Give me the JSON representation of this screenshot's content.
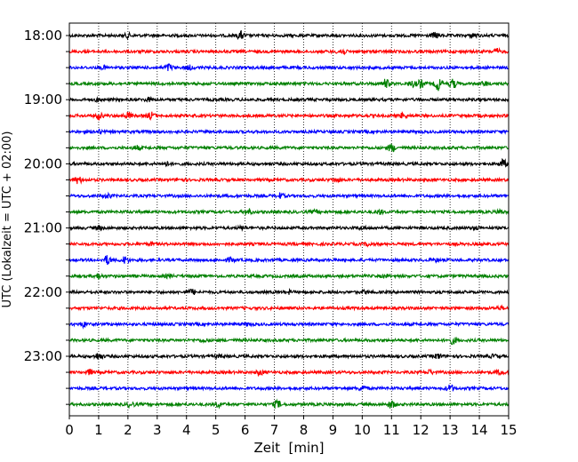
{
  "chart_data": {
    "type": "line",
    "title": "",
    "xlabel": "Zeit  [min]",
    "ylabel": "UTC (Lokalzeit = UTC + 02:00)",
    "xlim": [
      0,
      15
    ],
    "x_ticks": [
      0,
      1,
      2,
      3,
      4,
      5,
      6,
      7,
      8,
      9,
      10,
      11,
      12,
      13,
      14,
      15
    ],
    "x_tick_labels": [
      "0",
      "1",
      "2",
      "3",
      "4",
      "5",
      "6",
      "7",
      "8",
      "9",
      "10",
      "11",
      "12",
      "13",
      "14",
      "15"
    ],
    "y_ticks": [
      "18:00",
      "19:00",
      "20:00",
      "21:00",
      "22:00",
      "23:00"
    ],
    "grid": "vertical dotted lines at each minute",
    "line_minutes": 15,
    "color_cycle": [
      "#000000",
      "#ff0000",
      "#0000ff",
      "#008000"
    ],
    "series": [
      {
        "start": "18:00",
        "color": "#000000",
        "events": [
          [
            2.0,
            4
          ],
          [
            5.85,
            8
          ],
          [
            12.5,
            6
          ],
          [
            13.8,
            5
          ]
        ]
      },
      {
        "start": "18:15",
        "color": "#ff0000",
        "events": [
          [
            9.3,
            7
          ],
          [
            14.6,
            5
          ]
        ]
      },
      {
        "start": "18:30",
        "color": "#0000ff",
        "events": [
          [
            1.2,
            3
          ],
          [
            3.4,
            7
          ],
          [
            4.1,
            4
          ]
        ]
      },
      {
        "start": "18:45",
        "color": "#008000",
        "events": [
          [
            10.8,
            9
          ],
          [
            11.7,
            6
          ],
          [
            12.0,
            8
          ],
          [
            12.6,
            14
          ],
          [
            13.1,
            9
          ],
          [
            14.2,
            4
          ]
        ]
      },
      {
        "start": "19:00",
        "color": "#000000",
        "events": [
          [
            1.0,
            3
          ],
          [
            2.7,
            3
          ]
        ]
      },
      {
        "start": "19:15",
        "color": "#ff0000",
        "events": [
          [
            1.0,
            7
          ],
          [
            2.0,
            6
          ],
          [
            2.8,
            7
          ],
          [
            11.4,
            5
          ]
        ]
      },
      {
        "start": "19:30",
        "color": "#0000ff",
        "events": [
          [
            1.0,
            3
          ]
        ]
      },
      {
        "start": "19:45",
        "color": "#008000",
        "events": [
          [
            2.3,
            4
          ],
          [
            11.0,
            8
          ]
        ]
      },
      {
        "start": "20:00",
        "color": "#000000",
        "events": [
          [
            3.3,
            4
          ],
          [
            14.8,
            9
          ]
        ]
      },
      {
        "start": "20:15",
        "color": "#ff0000",
        "events": [
          [
            0.3,
            7
          ],
          [
            3.8,
            3
          ],
          [
            9.1,
            4
          ]
        ]
      },
      {
        "start": "20:30",
        "color": "#0000ff",
        "events": [
          [
            1.3,
            5
          ],
          [
            7.2,
            5
          ]
        ]
      },
      {
        "start": "20:45",
        "color": "#008000",
        "events": [
          [
            6.1,
            6
          ],
          [
            8.4,
            3
          ],
          [
            10.6,
            4
          ],
          [
            14.7,
            4
          ]
        ]
      },
      {
        "start": "21:00",
        "color": "#000000",
        "events": [
          [
            1.0,
            4
          ],
          [
            5.9,
            3
          ],
          [
            10.0,
            3
          ],
          [
            13.9,
            3
          ]
        ]
      },
      {
        "start": "21:15",
        "color": "#ff0000",
        "events": [
          [
            2.8,
            3
          ],
          [
            10.2,
            3
          ]
        ]
      },
      {
        "start": "21:30",
        "color": "#0000ff",
        "events": [
          [
            1.3,
            9
          ],
          [
            1.9,
            7
          ],
          [
            5.5,
            4
          ],
          [
            12.5,
            3
          ]
        ]
      },
      {
        "start": "21:45",
        "color": "#008000",
        "events": [
          [
            1.0,
            5
          ],
          [
            3.4,
            3
          ],
          [
            10.8,
            3
          ]
        ]
      },
      {
        "start": "22:00",
        "color": "#000000",
        "events": [
          [
            4.2,
            5
          ],
          [
            7.5,
            3
          ],
          [
            10.1,
            3
          ]
        ]
      },
      {
        "start": "22:15",
        "color": "#ff0000",
        "events": [
          [
            14.7,
            3
          ]
        ]
      },
      {
        "start": "22:30",
        "color": "#0000ff",
        "events": [
          [
            0.5,
            5
          ],
          [
            6.1,
            3
          ]
        ]
      },
      {
        "start": "22:45",
        "color": "#008000",
        "events": [
          [
            4.6,
            3
          ],
          [
            13.1,
            7
          ]
        ]
      },
      {
        "start": "23:00",
        "color": "#000000",
        "events": [
          [
            1.0,
            7
          ],
          [
            5.1,
            3
          ],
          [
            12.6,
            5
          ],
          [
            14.5,
            3
          ]
        ]
      },
      {
        "start": "23:15",
        "color": "#ff0000",
        "events": [
          [
            0.7,
            5
          ],
          [
            6.5,
            5
          ],
          [
            12.3,
            4
          ],
          [
            14.7,
            5
          ]
        ]
      },
      {
        "start": "23:30",
        "color": "#0000ff",
        "events": [
          [
            10.0,
            5
          ],
          [
            13.0,
            7
          ]
        ]
      },
      {
        "start": "23:45",
        "color": "#008000",
        "events": [
          [
            2.1,
            5
          ],
          [
            5.1,
            5
          ],
          [
            7.1,
            8
          ],
          [
            11.0,
            8
          ]
        ]
      }
    ]
  }
}
